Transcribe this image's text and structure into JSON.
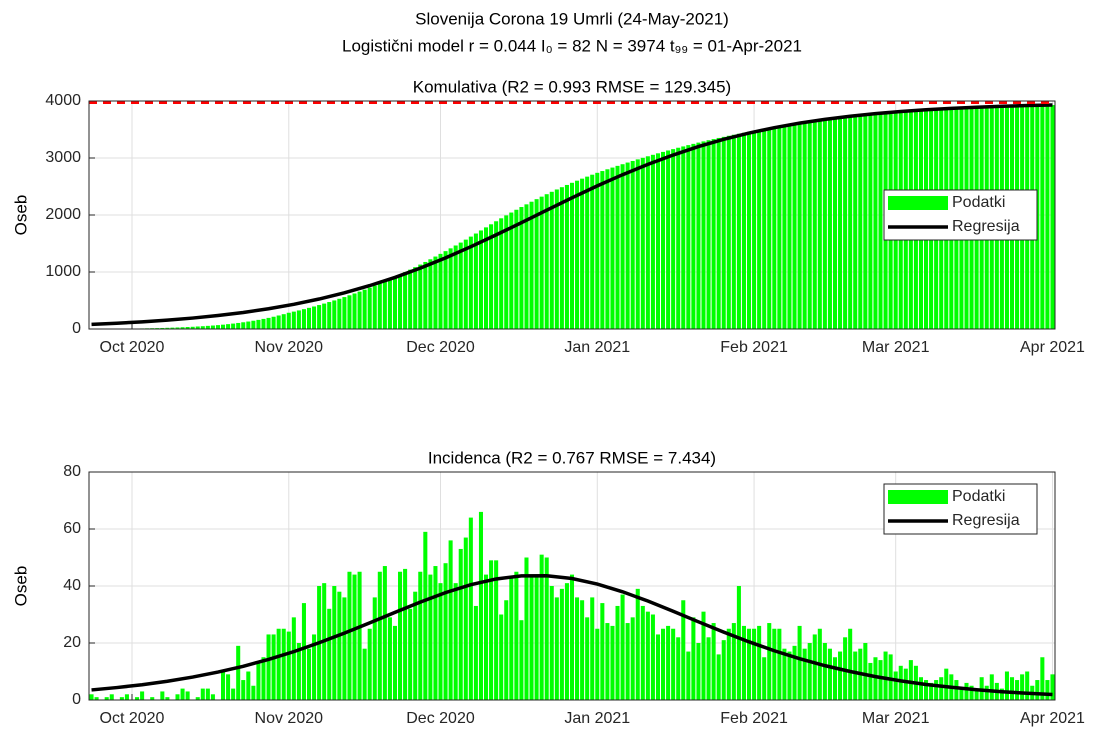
{
  "figure": {
    "title": "Slovenija Corona 19 Umrli (24-May-2021)",
    "subtitle": "Logistični model r = 0.044  I₀ = 82  N = 3974  t₉₉ = 01-Apr-2021"
  },
  "chart_data": [
    {
      "type": "bar",
      "title": "Komulativa (R2 = 0.993  RMSE = 129.345)",
      "ylabel": "Oseb",
      "categories": [
        null,
        null,
        null,
        null,
        null,
        null,
        null,
        null,
        null,
        null,
        null,
        null,
        null,
        null,
        null,
        null,
        null,
        null,
        null,
        null,
        null,
        null,
        null,
        null,
        null,
        null,
        null,
        null,
        null,
        null,
        null,
        null,
        null,
        null,
        null,
        null,
        null,
        null,
        null,
        null,
        null,
        null,
        null,
        null,
        null,
        null,
        null,
        null,
        null,
        null,
        null,
        null,
        null,
        null,
        null,
        null,
        null,
        null,
        null,
        null,
        null,
        null,
        null,
        null,
        null,
        null,
        null,
        null,
        null,
        null,
        null,
        null,
        null,
        null,
        null,
        null,
        null,
        null,
        null,
        null,
        null,
        null,
        null,
        null,
        null,
        null,
        null,
        null,
        null,
        null,
        null,
        null,
        null,
        null,
        null,
        null,
        null,
        null,
        null,
        null,
        null,
        null,
        null,
        null,
        null,
        null,
        null,
        null,
        null,
        null,
        null,
        null,
        null,
        null,
        null,
        null,
        null,
        null,
        null,
        null,
        null,
        null,
        null,
        null,
        null,
        null,
        null,
        null,
        null,
        null,
        null,
        null,
        null,
        null,
        null,
        null,
        null,
        null,
        null,
        null,
        null,
        null,
        null,
        null,
        null,
        null,
        null,
        null,
        null,
        null,
        null,
        null,
        null,
        null,
        null,
        null,
        null,
        null,
        null,
        null,
        null,
        null,
        null,
        null,
        null,
        null,
        null,
        null,
        null,
        null,
        null,
        null,
        null,
        null,
        null,
        null,
        null,
        null,
        null,
        null,
        null,
        null,
        null,
        null,
        null,
        null,
        null,
        null,
        null,
        null,
        null
      ],
      "xlim": [
        -0.5,
        190.5
      ],
      "xticks": [
        {
          "value": 8,
          "label": "Oct 2020"
        },
        {
          "value": 39,
          "label": "Nov 2020"
        },
        {
          "value": 69,
          "label": "Dec 2020"
        },
        {
          "value": 100,
          "label": "Jan 2021"
        },
        {
          "value": 131,
          "label": "Feb 2021"
        },
        {
          "value": 159,
          "label": "Mar 2021"
        },
        {
          "value": 190,
          "label": "Apr 2021"
        }
      ],
      "ylim": [
        0,
        4000
      ],
      "yticks": [
        0,
        1000,
        2000,
        3000,
        4000
      ],
      "grid": true,
      "legend": "east",
      "refline": {
        "value": 3974,
        "color": "#ff0000"
      },
      "series": [
        {
          "name": "Podatki",
          "color": "#00ff00",
          "values": [
            0,
            1,
            2,
            2,
            3,
            4,
            5,
            6,
            7,
            8,
            10,
            12,
            14,
            16,
            18,
            21,
            24,
            27,
            31,
            35,
            39,
            44,
            49,
            55,
            61,
            68,
            76,
            85,
            95,
            106,
            118,
            131,
            145,
            160,
            177,
            195,
            215,
            237,
            260,
            285,
            305,
            326,
            348,
            371,
            395,
            420,
            446,
            473,
            501,
            530,
            560,
            591,
            623,
            656,
            690,
            725,
            761,
            798,
            836,
            875,
            915,
            956,
            998,
            1041,
            1085,
            1130,
            1176,
            1223,
            1271,
            1318,
            1366,
            1415,
            1465,
            1516,
            1568,
            1621,
            1675,
            1729,
            1783,
            1837,
            1890,
            1942,
            1993,
            2043,
            2092,
            2140,
            2187,
            2233,
            2278,
            2322,
            2365,
            2407,
            2448,
            2488,
            2527,
            2565,
            2602,
            2638,
            2673,
            2707,
            2740,
            2771,
            2802,
            2832,
            2862,
            2891,
            2920,
            2948,
            2976,
            3003,
            3030,
            3056,
            3082,
            3107,
            3132,
            3156,
            3180,
            3203,
            3226,
            3248,
            3270,
            3291,
            3312,
            3332,
            3352,
            3371,
            3390,
            3408,
            3426,
            3443,
            3460,
            3476,
            3491,
            3506,
            3521,
            3535,
            3549,
            3563,
            3576,
            3589,
            3602,
            3614,
            3626,
            3638,
            3649,
            3660,
            3671,
            3681,
            3691,
            3701,
            3711,
            3720,
            3729,
            3738,
            3747,
            3755,
            3763,
            3771,
            3779,
            3786,
            3793,
            3800,
            3807,
            3813,
            3819,
            3825,
            3831,
            3837,
            3843,
            3848,
            3853,
            3858,
            3863,
            3868,
            3873,
            3877,
            3881,
            3885,
            3889,
            3893,
            3897,
            3901,
            3905,
            3908,
            3911,
            3914,
            3917,
            3920,
            3923,
            3926,
            3929
          ]
        },
        {
          "name": "Regresija",
          "color": "#000000",
          "type": "line",
          "x": [
            0,
            5,
            10,
            15,
            20,
            25,
            30,
            35,
            40,
            45,
            50,
            55,
            60,
            65,
            70,
            75,
            80,
            85,
            90,
            95,
            100,
            105,
            110,
            115,
            120,
            125,
            130,
            135,
            140,
            145,
            150,
            155,
            160,
            165,
            170,
            175,
            180,
            185,
            190
          ],
          "values": [
            82,
            101.6,
            125.8,
            155.5,
            192,
            236.6,
            290,
            355,
            433,
            526,
            635,
            761,
            905,
            1068,
            1248,
            1444,
            1651,
            1866,
            2084,
            2301,
            2511,
            2707,
            2888,
            3052,
            3200,
            3328,
            3438,
            3532,
            3612,
            3678,
            3732,
            3778,
            3815,
            3846,
            3870,
            3890,
            3907,
            3920,
            3930
          ]
        }
      ]
    },
    {
      "type": "bar",
      "title": "Incidenca (R2 = 0.767  RMSE = 7.434)",
      "ylabel": "Oseb",
      "categories": [
        null,
        null,
        null,
        null,
        null,
        null,
        null,
        null,
        null,
        null,
        null,
        null,
        null,
        null,
        null,
        null,
        null,
        null,
        null,
        null,
        null,
        null,
        null,
        null,
        null,
        null,
        null,
        null,
        null,
        null,
        null,
        null,
        null,
        null,
        null,
        null,
        null,
        null,
        null,
        null,
        null,
        null,
        null,
        null,
        null,
        null,
        null,
        null,
        null,
        null,
        null,
        null,
        null,
        null,
        null,
        null,
        null,
        null,
        null,
        null,
        null,
        null,
        null,
        null,
        null,
        null,
        null,
        null,
        null,
        null,
        null,
        null,
        null,
        null,
        null,
        null,
        null,
        null,
        null,
        null,
        null,
        null,
        null,
        null,
        null,
        null,
        null,
        null,
        null,
        null,
        null,
        null,
        null,
        null,
        null,
        null,
        null,
        null,
        null,
        null,
        null,
        null,
        null,
        null,
        null,
        null,
        null,
        null,
        null,
        null,
        null,
        null,
        null,
        null,
        null,
        null,
        null,
        null,
        null,
        null,
        null,
        null,
        null,
        null,
        null,
        null,
        null,
        null,
        null,
        null,
        null,
        null,
        null,
        null,
        null,
        null,
        null,
        null,
        null,
        null,
        null,
        null,
        null,
        null,
        null,
        null,
        null,
        null,
        null,
        null,
        null,
        null,
        null,
        null,
        null,
        null,
        null,
        null,
        null,
        null,
        null,
        null,
        null,
        null,
        null,
        null,
        null,
        null,
        null,
        null,
        null,
        null,
        null,
        null,
        null,
        null,
        null,
        null,
        null,
        null,
        null,
        null,
        null,
        null,
        null,
        null,
        null,
        null,
        null,
        null,
        null
      ],
      "xlim": [
        -0.5,
        190.5
      ],
      "xticks": [
        {
          "value": 8,
          "label": "Oct 2020"
        },
        {
          "value": 39,
          "label": "Nov 2020"
        },
        {
          "value": 69,
          "label": "Dec 2020"
        },
        {
          "value": 100,
          "label": "Jan 2021"
        },
        {
          "value": 131,
          "label": "Feb 2021"
        },
        {
          "value": 159,
          "label": "Mar 2021"
        },
        {
          "value": 190,
          "label": "Apr 2021"
        }
      ],
      "ylim": [
        0,
        80
      ],
      "yticks": [
        0,
        20,
        40,
        60,
        80
      ],
      "grid": true,
      "legend": "northeast",
      "series": [
        {
          "name": "Podatki",
          "color": "#00ff00",
          "values": [
            2,
            1,
            0,
            1,
            2,
            0,
            1,
            2,
            0,
            1,
            3,
            0,
            1,
            0,
            3,
            1,
            0,
            2,
            4,
            3,
            0,
            1,
            4,
            4,
            2,
            0,
            10,
            9,
            4,
            19,
            7,
            10,
            5,
            13,
            15,
            23,
            23,
            25,
            25,
            24,
            29,
            20,
            34,
            18,
            23,
            40,
            41,
            32,
            40,
            38,
            36,
            45,
            44,
            45,
            18,
            25,
            36,
            45,
            47,
            29,
            26,
            45,
            46,
            32,
            38,
            45,
            59,
            44,
            47,
            41,
            48,
            56,
            41,
            53,
            57,
            64,
            33,
            66,
            44,
            49,
            49,
            30,
            35,
            43,
            45,
            28,
            50,
            43,
            44,
            51,
            50,
            40,
            36,
            39,
            41,
            44,
            36,
            35,
            29,
            36,
            25,
            34,
            27,
            26,
            33,
            37,
            27,
            29,
            39,
            33,
            31,
            30,
            23,
            25,
            26,
            25,
            22,
            35,
            17,
            29,
            20,
            31,
            22,
            27,
            16,
            21,
            25,
            27,
            40,
            26,
            25,
            25,
            26,
            15,
            27,
            25,
            25,
            18,
            17,
            19,
            26,
            18,
            20,
            23,
            25,
            20,
            18,
            15,
            17,
            22,
            25,
            17,
            18,
            20,
            13,
            15,
            14,
            17,
            16,
            10,
            12,
            11,
            14,
            12,
            8,
            7,
            6,
            7,
            8,
            11,
            9,
            7,
            4,
            6,
            5,
            4,
            8,
            5,
            9,
            6,
            4,
            10,
            8,
            7,
            9,
            10,
            5,
            7,
            15,
            7,
            9
          ]
        },
        {
          "name": "Regresija",
          "color": "#000000",
          "type": "line",
          "x": [
            0,
            5,
            10,
            15,
            20,
            25,
            30,
            35,
            40,
            45,
            50,
            55,
            60,
            65,
            70,
            75,
            80,
            85,
            90,
            95,
            100,
            105,
            110,
            115,
            120,
            125,
            130,
            135,
            140,
            145,
            150,
            155,
            160,
            165,
            170,
            175,
            180,
            185,
            190
          ],
          "values": [
            3.53,
            4.36,
            5.36,
            6.57,
            8.04,
            9.79,
            11.83,
            14.23,
            16.98,
            20.09,
            23.47,
            27.07,
            30.74,
            34.35,
            37.67,
            40.45,
            42.47,
            43.55,
            43.61,
            42.62,
            40.68,
            37.97,
            34.73,
            31.15,
            27.43,
            23.81,
            20.41,
            17.28,
            14.48,
            12.06,
            10.0,
            8.2,
            6.71,
            5.45,
            4.46,
            3.61,
            2.9,
            2.35,
            1.92
          ]
        }
      ]
    }
  ]
}
